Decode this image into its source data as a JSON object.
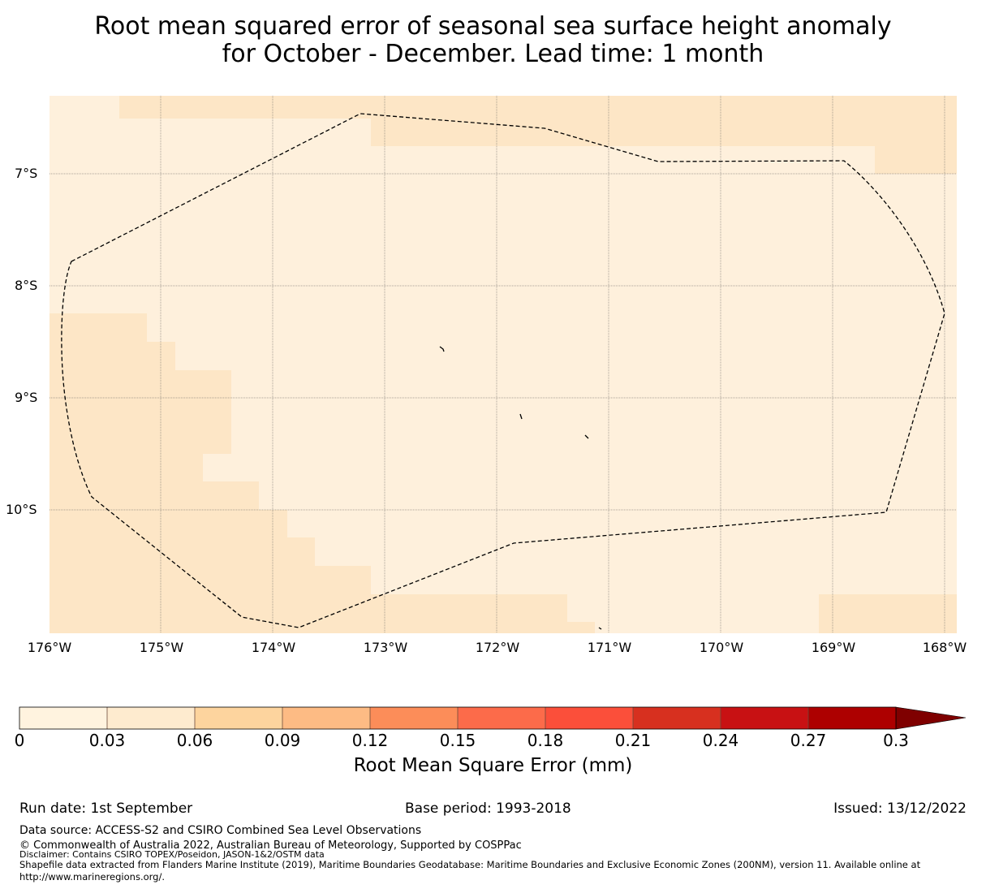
{
  "title": {
    "line1": "Root mean squared error of seasonal sea surface height anomaly",
    "line2": "for October - December. Lead time: 1 month"
  },
  "map": {
    "latitude_labels": [
      "7°S",
      "8°S",
      "9°S",
      "10°S"
    ],
    "longitude_labels": [
      "176°W",
      "175°W",
      "174°W",
      "173°W",
      "172°W",
      "171°W",
      "170°W",
      "169°W",
      "168°W"
    ],
    "colors": {
      "cell_low": "#fef0dc",
      "cell_mid": "#fde6c6",
      "border_line": "#000000"
    }
  },
  "colorbar": {
    "ticks": [
      "0",
      "0.03",
      "0.06",
      "0.09",
      "0.12",
      "0.15",
      "0.18",
      "0.21",
      "0.24",
      "0.27",
      "0.3"
    ],
    "colors": [
      "#fff3df",
      "#feebcf",
      "#fdd49e",
      "#fdbb84",
      "#fc8d59",
      "#fc6b4a",
      "#fb4f3a",
      "#d7301f",
      "#c81113",
      "#ad0000",
      "#7f0000"
    ],
    "label": "Root Mean Square Error (mm)"
  },
  "footer": {
    "run_date": "Run date: 1st September",
    "base_period": "Base period: 1993-2018",
    "issued": "Issued: 13/12/2022",
    "data_source": "Data source: ACCESS-S2 and CSIRO Combined Sea Level Observations",
    "copyright": "© Commonwealth of Australia 2022, Australian Bureau of Meteorology, Supported by COSPPac",
    "disclaimer": "Disclaimer: Contains CSIRO TOPEX/Poseidon, JASON-1&2/OSTM data",
    "shapefile": "Shapefile data extracted from Flanders Marine Institute (2019), Maritime Boundaries Geodatabase: Maritime Boundaries and Exclusive Economic Zones (200NM), version 11. Available online at",
    "shapefile_url": "http://www.marineregions.org/."
  }
}
